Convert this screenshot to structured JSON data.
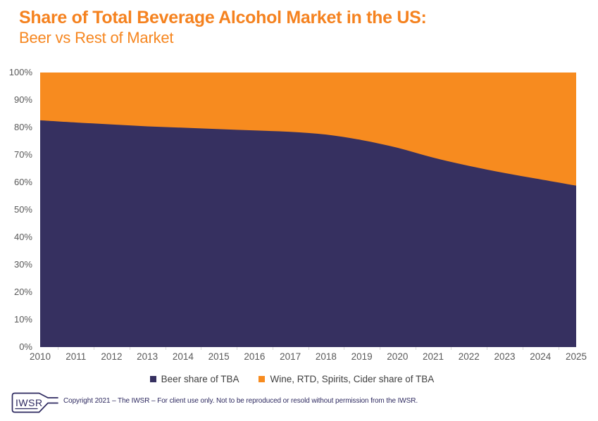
{
  "page": {
    "background": "#ffffff"
  },
  "header": {
    "title": "Share of Total Beverage Alcohol Market in the US:",
    "subtitle": "Beer vs Rest of Market",
    "title_color": "#F5821F",
    "subtitle_color": "#F6861F"
  },
  "chart_data": {
    "type": "area",
    "stacked_percent": true,
    "title": "Share of Total Beverage Alcohol Market in the US: Beer vs Rest of Market",
    "x": [
      2010,
      2011,
      2012,
      2013,
      2014,
      2015,
      2016,
      2017,
      2018,
      2019,
      2020,
      2021,
      2022,
      2023,
      2024,
      2025
    ],
    "series": [
      {
        "name": "Beer share of TBA",
        "color": "#363060",
        "values": [
          82.6,
          81.8,
          81.1,
          80.4,
          79.9,
          79.4,
          78.9,
          78.4,
          77.4,
          75.4,
          72.6,
          69.0,
          66.0,
          63.4,
          61.1,
          58.8
        ]
      },
      {
        "name": "Wine, RTD, Spirits, Cider share of TBA",
        "color": "#F78B1F",
        "values": [
          17.4,
          18.2,
          18.9,
          19.6,
          20.1,
          20.6,
          21.1,
          21.6,
          22.6,
          24.6,
          27.4,
          31.0,
          34.0,
          36.6,
          38.9,
          41.2
        ]
      }
    ],
    "ylim": [
      0,
      100
    ],
    "yticks": [
      "100%",
      "90%",
      "80%",
      "70%",
      "60%",
      "50%",
      "40%",
      "30%",
      "20%",
      "10%",
      "0%"
    ],
    "xlabel": "",
    "ylabel": "",
    "grid": false,
    "legend_position": "bottom",
    "axis_label_color": "#595959",
    "tick_color": "#D9D9D9",
    "smooth": true
  },
  "footer": {
    "logo_text": "IWSR",
    "logo_color": "#2E2A60",
    "copyright": "Copyright 2021 – The IWSR – For client use only. Not to be reproduced or resold without permission from the IWSR."
  }
}
